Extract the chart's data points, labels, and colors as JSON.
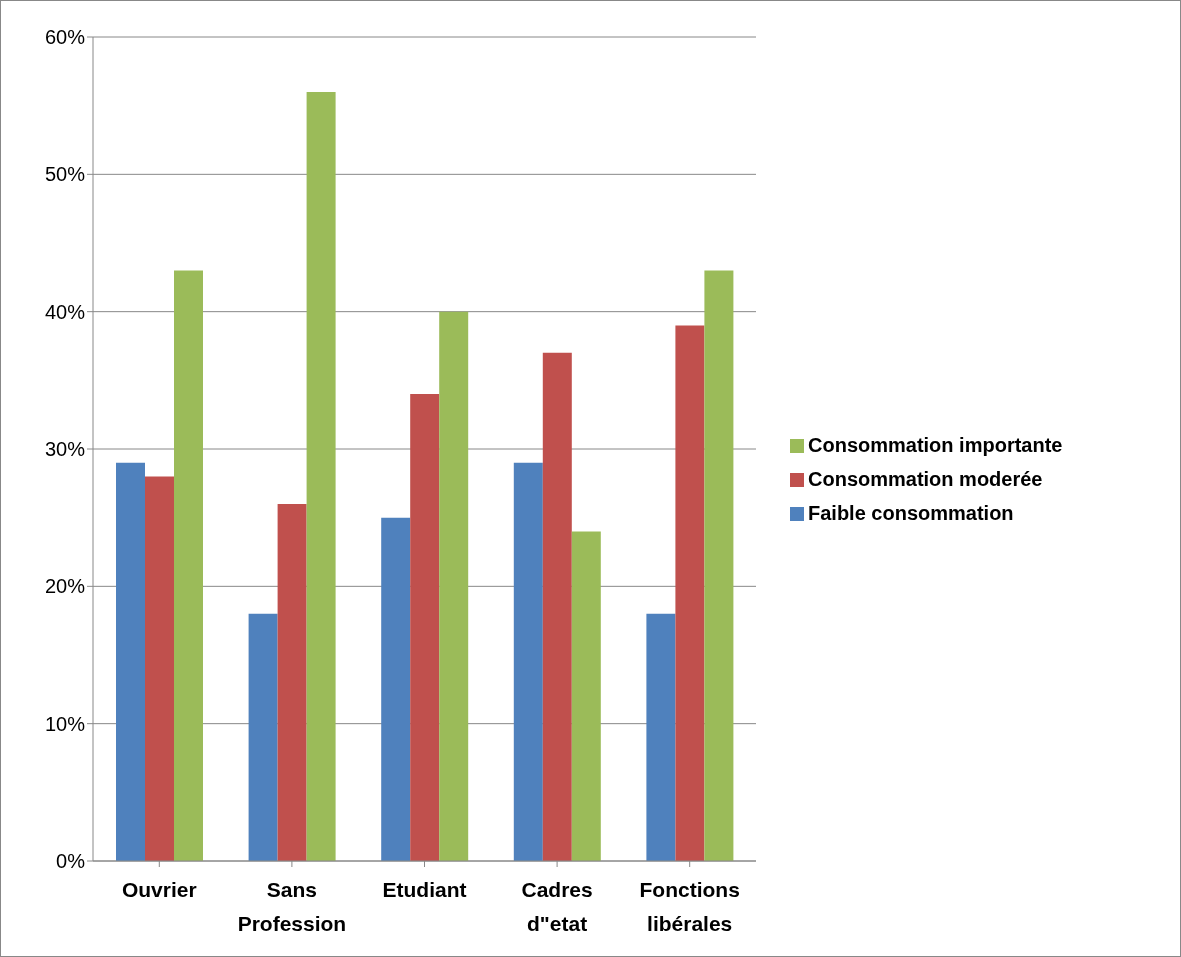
{
  "chart_data": {
    "type": "bar",
    "categories": [
      "Ouvrier",
      "Sans Profession",
      "Etudiant",
      "Cadres d\"etat",
      "Fonctions libérales"
    ],
    "series": [
      {
        "name": "Faible consommation",
        "color": "#4f81bd",
        "values": [
          29,
          18,
          25,
          29,
          18
        ]
      },
      {
        "name": "Consommation moderée",
        "color": "#c0504d",
        "values": [
          28,
          26,
          34,
          37,
          39
        ]
      },
      {
        "name": "Consommation importante",
        "color": "#9bbb59",
        "values": [
          43,
          56,
          40,
          24,
          43
        ]
      }
    ],
    "ylim": [
      0,
      60
    ],
    "yticks": [
      {
        "value": 0,
        "label": "0%"
      },
      {
        "value": 10,
        "label": "10%"
      },
      {
        "value": 20,
        "label": "20%"
      },
      {
        "value": 30,
        "label": "30%"
      },
      {
        "value": 40,
        "label": "40%"
      },
      {
        "value": 50,
        "label": "50%"
      },
      {
        "value": 60,
        "label": "60%"
      }
    ],
    "grid": "y",
    "legend": "right"
  }
}
